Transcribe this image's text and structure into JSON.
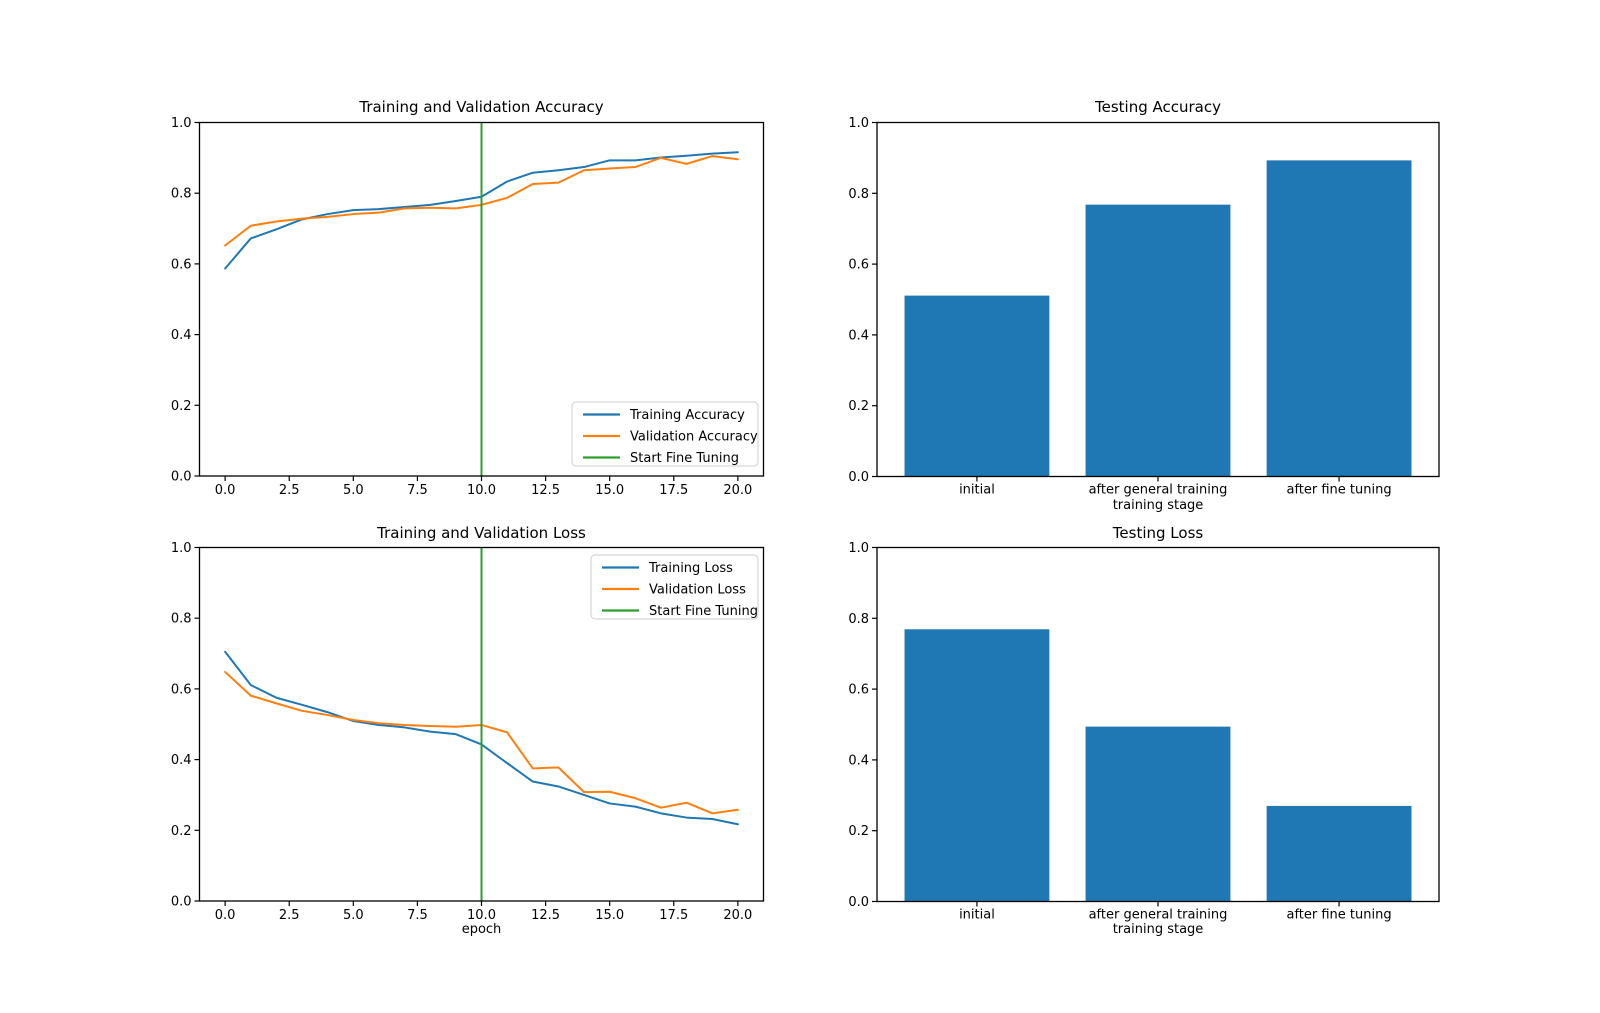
{
  "figure": {
    "background": "#ffffff"
  },
  "palette": {
    "blue": "#1f77b4",
    "orange": "#ff7f0e",
    "green": "#2ca02c",
    "legend_border": "#cccccc",
    "text": "#000000"
  },
  "chart_data": [
    {
      "id": "train_val_accuracy",
      "type": "line",
      "title": "Training and Validation Accuracy",
      "xlabel": "",
      "ylabel": "",
      "xlim": [
        -1,
        21
      ],
      "ylim": [
        0,
        1
      ],
      "xticks": [
        0,
        2.5,
        5,
        7.5,
        10,
        12.5,
        15,
        17.5,
        20
      ],
      "xtick_labels": [
        "0.0",
        "2.5",
        "5.0",
        "7.5",
        "10.0",
        "12.5",
        "15.0",
        "17.5",
        "20.0"
      ],
      "yticks": [
        0,
        0.2,
        0.4,
        0.6,
        0.8,
        1.0
      ],
      "ytick_labels": [
        "0.0",
        "0.2",
        "0.4",
        "0.6",
        "0.8",
        "1.0"
      ],
      "grid": false,
      "x": [
        0,
        1,
        2,
        3,
        4,
        5,
        6,
        7,
        8,
        9,
        10,
        11,
        12,
        13,
        14,
        15,
        16,
        17,
        18,
        19,
        20
      ],
      "series": [
        {
          "name": "Training Accuracy",
          "color": "#1f77b4",
          "values": [
            0.587,
            0.672,
            0.698,
            0.726,
            0.741,
            0.752,
            0.755,
            0.761,
            0.767,
            0.778,
            0.79,
            0.833,
            0.858,
            0.865,
            0.874,
            0.893,
            0.893,
            0.901,
            0.906,
            0.912,
            0.916
          ]
        },
        {
          "name": "Validation Accuracy",
          "color": "#ff7f0e",
          "values": [
            0.652,
            0.708,
            0.72,
            0.728,
            0.733,
            0.741,
            0.745,
            0.757,
            0.759,
            0.757,
            0.767,
            0.787,
            0.826,
            0.83,
            0.865,
            0.87,
            0.874,
            0.9,
            0.883,
            0.905,
            0.896
          ]
        }
      ],
      "vline": {
        "x": 10,
        "label": "Start Fine Tuning",
        "color": "#2ca02c"
      },
      "legend": {
        "position": "lower right",
        "labels": [
          "Training Accuracy",
          "Validation Accuracy",
          "Start Fine Tuning"
        ]
      }
    },
    {
      "id": "testing_accuracy",
      "type": "bar",
      "title": "Testing Accuracy",
      "xlabel": "training stage",
      "ylabel": "",
      "xlim": [
        -0.552,
        2.552
      ],
      "ylim": [
        0,
        1
      ],
      "yticks": [
        0,
        0.2,
        0.4,
        0.6,
        0.8,
        1.0
      ],
      "ytick_labels": [
        "0.0",
        "0.2",
        "0.4",
        "0.6",
        "0.8",
        "1.0"
      ],
      "grid": false,
      "categories": [
        "initial",
        "after general training",
        "after fine tuning"
      ],
      "values": [
        0.511,
        0.768,
        0.893
      ],
      "bar_color": "#1f77b4"
    },
    {
      "id": "train_val_loss",
      "type": "line",
      "title": "Training and Validation Loss",
      "xlabel": "epoch",
      "ylabel": "",
      "xlim": [
        -1,
        21
      ],
      "ylim": [
        0,
        1
      ],
      "xticks": [
        0,
        2.5,
        5,
        7.5,
        10,
        12.5,
        15,
        17.5,
        20
      ],
      "xtick_labels": [
        "0.0",
        "2.5",
        "5.0",
        "7.5",
        "10.0",
        "12.5",
        "15.0",
        "17.5",
        "20.0"
      ],
      "yticks": [
        0,
        0.2,
        0.4,
        0.6,
        0.8,
        1.0
      ],
      "ytick_labels": [
        "0.0",
        "0.2",
        "0.4",
        "0.6",
        "0.8",
        "1.0"
      ],
      "grid": false,
      "x": [
        0,
        1,
        2,
        3,
        4,
        5,
        6,
        7,
        8,
        9,
        10,
        11,
        12,
        13,
        14,
        15,
        16,
        17,
        18,
        19,
        20
      ],
      "series": [
        {
          "name": "Training Loss",
          "color": "#1f77b4",
          "values": [
            0.705,
            0.611,
            0.575,
            0.555,
            0.534,
            0.509,
            0.498,
            0.491,
            0.479,
            0.472,
            0.443,
            0.39,
            0.338,
            0.324,
            0.3,
            0.276,
            0.267,
            0.248,
            0.236,
            0.232,
            0.217
          ]
        },
        {
          "name": "Validation Loss",
          "color": "#ff7f0e",
          "values": [
            0.648,
            0.581,
            0.559,
            0.538,
            0.526,
            0.512,
            0.503,
            0.498,
            0.495,
            0.493,
            0.498,
            0.477,
            0.375,
            0.378,
            0.308,
            0.309,
            0.291,
            0.264,
            0.278,
            0.248,
            0.258
          ]
        }
      ],
      "vline": {
        "x": 10,
        "label": "Start Fine Tuning",
        "color": "#2ca02c"
      },
      "legend": {
        "position": "upper right",
        "labels": [
          "Training Loss",
          "Validation Loss",
          "Start Fine Tuning"
        ]
      }
    },
    {
      "id": "testing_loss",
      "type": "bar",
      "title": "Testing Loss",
      "xlabel": "training stage",
      "ylabel": "",
      "xlim": [
        -0.552,
        2.552
      ],
      "ylim": [
        0,
        1
      ],
      "yticks": [
        0,
        0.2,
        0.4,
        0.6,
        0.8,
        1.0
      ],
      "ytick_labels": [
        "0.0",
        "0.2",
        "0.4",
        "0.6",
        "0.8",
        "1.0"
      ],
      "grid": false,
      "categories": [
        "initial",
        "after general training",
        "after fine tuning"
      ],
      "values": [
        0.769,
        0.494,
        0.27
      ],
      "bar_color": "#1f77b4"
    }
  ]
}
